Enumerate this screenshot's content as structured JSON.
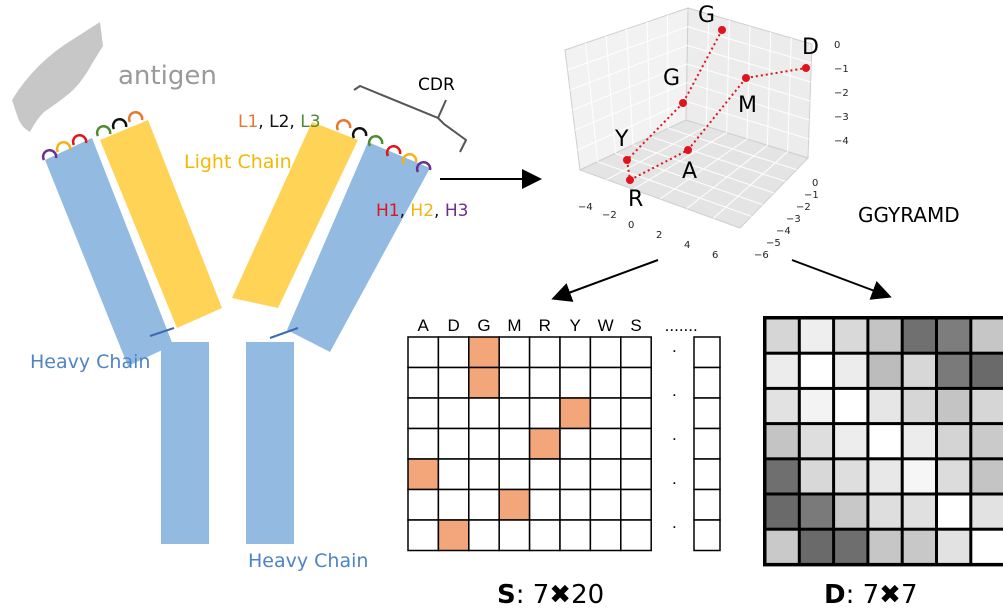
{
  "antibody": {
    "antigen_label": "antigen",
    "cdr_label": "CDR",
    "light_chain_label": "Light Chain",
    "heavy_chain_left_label": "Heavy Chain",
    "heavy_chain_bottom_label": "Heavy Chain",
    "light_loops": [
      {
        "text": "L1",
        "color": "#e8772e"
      },
      {
        "text": "L2",
        "color": "#111111"
      },
      {
        "text": "L3",
        "color": "#4e8a2f"
      }
    ],
    "heavy_loops": [
      {
        "text": "H1",
        "color": "#e0141c"
      },
      {
        "text": "H2",
        "color": "#f2b313"
      },
      {
        "text": "H3",
        "color": "#6b2f8e"
      }
    ],
    "colors": {
      "heavy": "#93bbe2",
      "light": "#ffd356",
      "antigen": "#c7c7c7"
    }
  },
  "plot3d": {
    "sequence_label": "GGYRAMD",
    "points": [
      {
        "label": "G"
      },
      {
        "label": "G"
      },
      {
        "label": "Y"
      },
      {
        "label": "R"
      },
      {
        "label": "A"
      },
      {
        "label": "M"
      },
      {
        "label": "D"
      }
    ],
    "x_ticks": [
      "−4",
      "−2",
      "0",
      "2",
      "4",
      "6"
    ],
    "y_ticks": [
      "0",
      "−1",
      "−2",
      "−3",
      "−4",
      "−5",
      "−6"
    ],
    "z_ticks": [
      "0",
      "−1",
      "−2",
      "−3",
      "−4"
    ],
    "point_color": "#e0141c"
  },
  "matrix_s": {
    "caption_bold": "S",
    "caption_rest": ": 7✖20",
    "headers": [
      "A",
      "D",
      "G",
      "M",
      "R",
      "Y",
      "W",
      "S",
      "......."
    ],
    "highlight_color": "#f2a67a",
    "highlights": [
      [
        0,
        2
      ],
      [
        1,
        2
      ],
      [
        2,
        5
      ],
      [
        3,
        4
      ],
      [
        4,
        0
      ],
      [
        5,
        3
      ],
      [
        6,
        1
      ]
    ],
    "rows": 7,
    "cols": 8,
    "dots": [
      ".",
      ".",
      ".",
      ".",
      "."
    ]
  },
  "matrix_d": {
    "caption_bold": "D",
    "caption_rest": ": 7✖7",
    "grays": [
      [
        "#d6d6d6",
        "#eeeeee",
        "#d9d9d9",
        "#c4c4c4",
        "#707070",
        "#7d7d7d",
        "#c6c6c6"
      ],
      [
        "#ececec",
        "#ffffff",
        "#ececec",
        "#bcbcbc",
        "#d7d7d7",
        "#7a7a7a",
        "#6a6a6a"
      ],
      [
        "#e2e2e2",
        "#f3f3f3",
        "#ffffff",
        "#e6e6e6",
        "#d6d6d6",
        "#c4c4c4",
        "#d6d6d6"
      ],
      [
        "#c4c4c4",
        "#dedede",
        "#ededed",
        "#ffffff",
        "#ececec",
        "#d4d4d4",
        "#cacaca"
      ],
      [
        "#6f6f6f",
        "#d8d8d8",
        "#dedede",
        "#e8e8e8",
        "#f6f6f6",
        "#dcdcdc",
        "#c4c4c4"
      ],
      [
        "#6a6a6a",
        "#7a7a7a",
        "#c8c8c8",
        "#dedede",
        "#e0e0e0",
        "#ffffff",
        "#e2e2e2"
      ],
      [
        "#c9c9c9",
        "#6a6a6a",
        "#6e6e6e",
        "#c6c6c6",
        "#c8c8c8",
        "#e2e2e2",
        "#ffffff"
      ]
    ]
  }
}
